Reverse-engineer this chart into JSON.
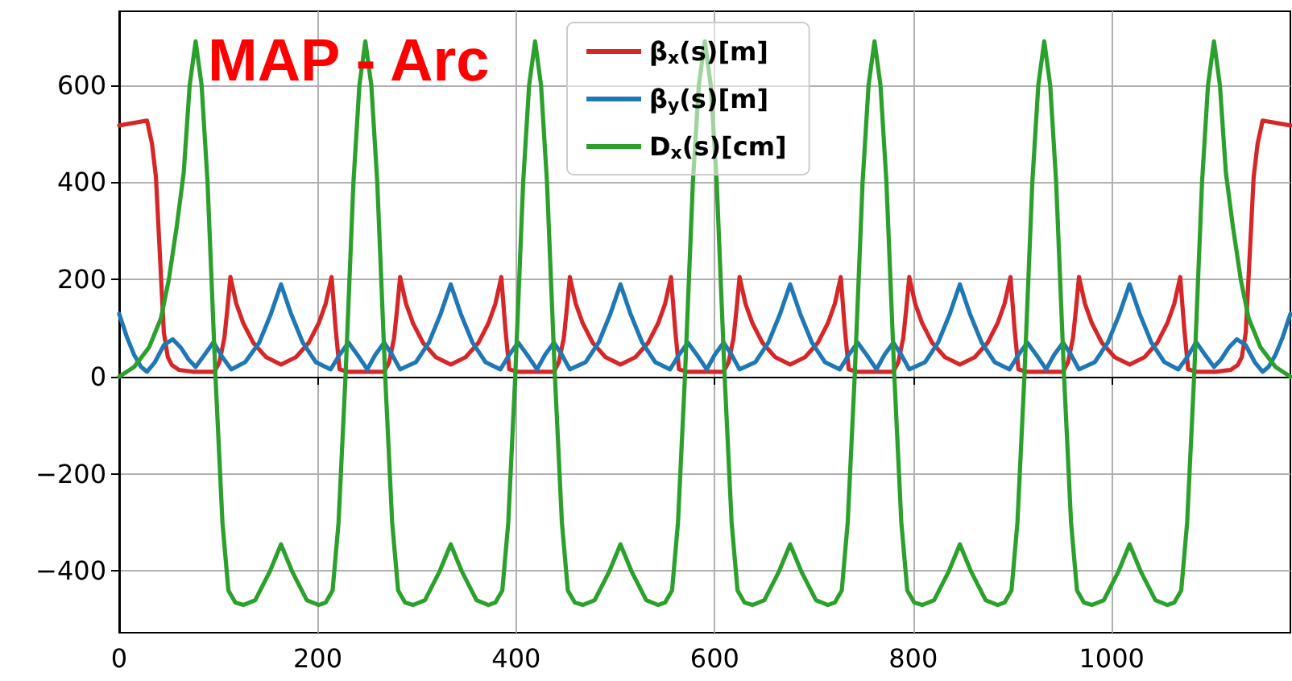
{
  "chart_data": {
    "type": "line",
    "title": "MAP - Arc",
    "xlim": [
      0,
      1180
    ],
    "xticks": [
      0,
      200,
      400,
      600,
      800,
      1000
    ],
    "ylim": [
      -527,
      752
    ],
    "yticks": [
      -400,
      -200,
      0,
      200,
      400,
      600
    ],
    "grid": true,
    "legend": "top",
    "series": [
      {
        "name": "β$_{x}$(s)[m]",
        "color": "#d62728",
        "x": [
          0,
          28,
          33,
          37,
          41,
          45,
          49,
          53,
          60,
          75,
          96,
          101,
          106,
          109,
          112,
          118,
          125,
          135,
          148,
          163,
          178,
          191,
          201,
          208,
          214,
          218,
          222,
          230,
          250,
          267,
          272,
          277,
          280,
          283,
          289,
          296,
          306,
          319,
          334,
          349,
          362,
          372,
          379,
          385,
          389,
          393,
          401,
          420,
          438,
          443,
          448,
          451,
          454,
          460,
          467,
          477,
          490,
          505,
          520,
          533,
          543,
          550,
          556,
          560,
          564,
          572,
          590,
          609,
          614,
          619,
          622,
          625,
          631,
          638,
          648,
          661,
          676,
          691,
          704,
          714,
          721,
          727,
          731,
          735,
          743,
          762,
          780,
          785,
          790,
          793,
          796,
          802,
          809,
          819,
          832,
          847,
          862,
          875,
          885,
          892,
          898,
          902,
          906,
          914,
          933,
          951,
          956,
          961,
          964,
          967,
          973,
          980,
          990,
          1003,
          1018,
          1033,
          1046,
          1056,
          1063,
          1069,
          1073,
          1077,
          1085,
          1105,
          1120,
          1127,
          1131,
          1135,
          1139,
          1143,
          1147,
          1152,
          1180
        ],
        "values": [
          517,
          527,
          480,
          411,
          250,
          90,
          40,
          24,
          14,
          10,
          10,
          30,
          80,
          140,
          205,
          150,
          110,
          70,
          40,
          25,
          40,
          70,
          110,
          150,
          205,
          100,
          15,
          10,
          10,
          10,
          30,
          80,
          140,
          205,
          150,
          110,
          70,
          40,
          25,
          40,
          70,
          110,
          150,
          205,
          100,
          15,
          10,
          10,
          10,
          30,
          80,
          140,
          205,
          150,
          110,
          70,
          40,
          25,
          40,
          70,
          110,
          150,
          205,
          100,
          15,
          10,
          10,
          10,
          30,
          80,
          140,
          205,
          150,
          110,
          70,
          40,
          25,
          40,
          70,
          110,
          150,
          205,
          100,
          15,
          10,
          10,
          10,
          30,
          80,
          140,
          205,
          150,
          110,
          70,
          40,
          25,
          40,
          70,
          110,
          150,
          205,
          100,
          15,
          10,
          10,
          10,
          30,
          80,
          140,
          205,
          150,
          110,
          70,
          40,
          25,
          40,
          70,
          110,
          150,
          205,
          100,
          15,
          10,
          10,
          14,
          24,
          40,
          90,
          250,
          411,
          480,
          527,
          517
        ]
      },
      {
        "name": "β$_{y}$(s)[m]",
        "color": "#1f77b4",
        "x": [
          0,
          8,
          15,
          22,
          28,
          36,
          45,
          54,
          62,
          70,
          77,
          86,
          95,
          104,
          113,
          127,
          141,
          153,
          163,
          173,
          185,
          198,
          213,
          222,
          231,
          240,
          250,
          258,
          267,
          275,
          283,
          299,
          312,
          324,
          334,
          344,
          356,
          369,
          384,
          393,
          402,
          411,
          421,
          429,
          438,
          446,
          454,
          470,
          483,
          495,
          505,
          515,
          527,
          540,
          555,
          564,
          573,
          582,
          592,
          600,
          609,
          617,
          625,
          641,
          654,
          666,
          676,
          686,
          698,
          711,
          726,
          735,
          744,
          753,
          763,
          771,
          780,
          788,
          796,
          812,
          825,
          837,
          847,
          857,
          869,
          882,
          897,
          906,
          915,
          924,
          934,
          942,
          951,
          959,
          967,
          983,
          996,
          1008,
          1018,
          1028,
          1040,
          1053,
          1067,
          1076,
          1085,
          1094,
          1103,
          1110,
          1118,
          1126,
          1135,
          1144,
          1152,
          1158,
          1165,
          1172,
          1180
        ],
        "values": [
          129,
          80,
          45,
          20,
          10,
          30,
          65,
          77,
          60,
          35,
          20,
          45,
          71,
          40,
          15,
          30,
          70,
          130,
          190,
          130,
          70,
          30,
          15,
          45,
          70,
          45,
          15,
          45,
          70,
          45,
          15,
          30,
          70,
          130,
          190,
          130,
          70,
          30,
          15,
          45,
          70,
          45,
          15,
          45,
          70,
          45,
          15,
          30,
          70,
          130,
          190,
          130,
          70,
          30,
          15,
          45,
          70,
          45,
          15,
          45,
          70,
          45,
          15,
          30,
          70,
          130,
          190,
          130,
          70,
          30,
          15,
          45,
          70,
          45,
          15,
          45,
          70,
          45,
          15,
          30,
          70,
          130,
          190,
          130,
          70,
          30,
          15,
          45,
          70,
          45,
          15,
          45,
          70,
          45,
          15,
          30,
          70,
          130,
          190,
          130,
          70,
          30,
          15,
          40,
          71,
          45,
          20,
          35,
          60,
          77,
          65,
          30,
          10,
          20,
          45,
          80,
          129
        ]
      },
      {
        "name": "D$_{x}$(s)[cm]",
        "color": "#2ca02c",
        "x": [
          0,
          15,
          30,
          42,
          50,
          58,
          65,
          71,
          77,
          83,
          89,
          97,
          104,
          110,
          117,
          125,
          137,
          152,
          163,
          174,
          189,
          201,
          208,
          215,
          221,
          228,
          236,
          242,
          248,
          254,
          260,
          268,
          275,
          281,
          288,
          296,
          308,
          323,
          334,
          345,
          360,
          372,
          379,
          386,
          392,
          399,
          407,
          413,
          419,
          425,
          431,
          439,
          446,
          452,
          459,
          467,
          479,
          494,
          505,
          516,
          531,
          543,
          550,
          557,
          563,
          570,
          578,
          584,
          590,
          596,
          602,
          610,
          617,
          623,
          630,
          638,
          650,
          665,
          676,
          687,
          702,
          714,
          721,
          728,
          734,
          741,
          749,
          755,
          761,
          767,
          773,
          781,
          788,
          794,
          801,
          809,
          821,
          836,
          847,
          858,
          873,
          885,
          892,
          899,
          905,
          912,
          920,
          926,
          932,
          938,
          944,
          952,
          959,
          965,
          972,
          980,
          992,
          1007,
          1018,
          1029,
          1044,
          1056,
          1063,
          1070,
          1076,
          1083,
          1091,
          1097,
          1103,
          1109,
          1115,
          1122,
          1130,
          1138,
          1150,
          1165,
          1180
        ],
        "values": [
          0,
          20,
          60,
          120,
          200,
          310,
          420,
          600,
          690,
          600,
          400,
          0,
          -300,
          -440,
          -465,
          -470,
          -460,
          -400,
          -345,
          -400,
          -460,
          -470,
          -465,
          -440,
          -300,
          0,
          400,
          600,
          690,
          600,
          400,
          0,
          -300,
          -440,
          -465,
          -470,
          -460,
          -400,
          -345,
          -400,
          -460,
          -470,
          -465,
          -440,
          -300,
          0,
          400,
          600,
          690,
          600,
          400,
          0,
          -300,
          -440,
          -465,
          -470,
          -460,
          -400,
          -345,
          -400,
          -460,
          -470,
          -465,
          -440,
          -300,
          0,
          400,
          600,
          690,
          600,
          400,
          0,
          -300,
          -440,
          -465,
          -470,
          -460,
          -400,
          -345,
          -400,
          -460,
          -470,
          -465,
          -440,
          -300,
          0,
          400,
          600,
          690,
          600,
          400,
          0,
          -300,
          -440,
          -465,
          -470,
          -460,
          -400,
          -345,
          -400,
          -460,
          -470,
          -465,
          -440,
          -300,
          0,
          400,
          600,
          690,
          600,
          400,
          0,
          -300,
          -440,
          -465,
          -470,
          -460,
          -400,
          -345,
          -400,
          -460,
          -470,
          -465,
          -440,
          -300,
          0,
          400,
          600,
          690,
          600,
          420,
          310,
          200,
          120,
          60,
          20,
          0
        ]
      }
    ]
  }
}
